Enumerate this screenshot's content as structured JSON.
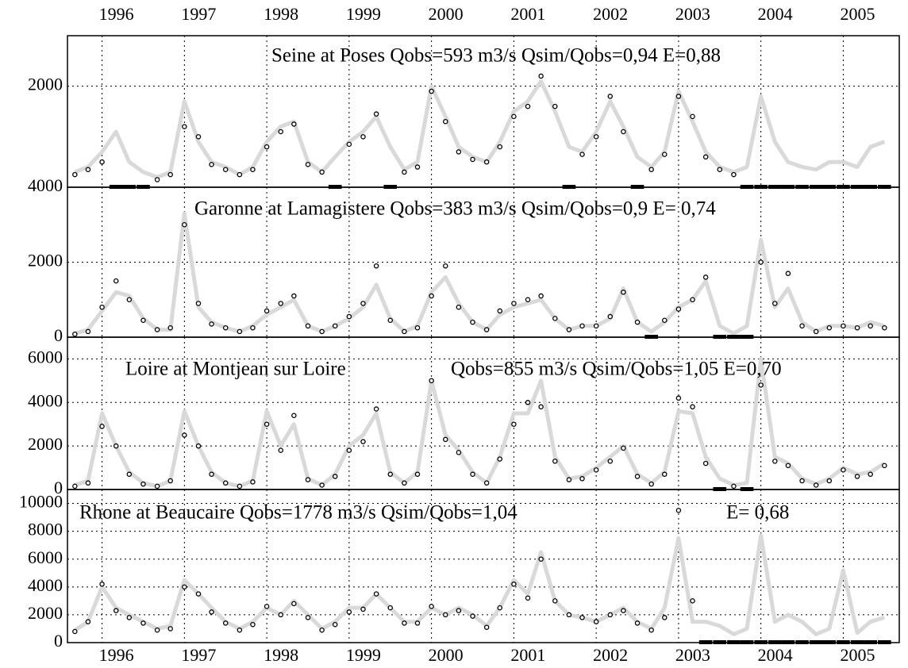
{
  "chart_data": [
    {
      "type": "line",
      "annotations": [
        "Seine at Poses Qobs=593 m3/s Qsim/Qobs=0,94 E=0,88"
      ],
      "x": [
        1995.67,
        1995.83,
        1996,
        1996.17,
        1996.33,
        1996.5,
        1996.67,
        1996.83,
        1997,
        1997.17,
        1997.33,
        1997.5,
        1997.67,
        1997.83,
        1998,
        1998.17,
        1998.33,
        1998.5,
        1998.67,
        1998.83,
        1999,
        1999.17,
        1999.33,
        1999.5,
        1999.67,
        1999.83,
        2000,
        2000.17,
        2000.33,
        2000.5,
        2000.67,
        2000.83,
        2001,
        2001.17,
        2001.33,
        2001.5,
        2001.67,
        2001.83,
        2002,
        2002.17,
        2002.33,
        2002.5,
        2002.67,
        2002.83,
        2003,
        2003.17,
        2003.33,
        2003.5,
        2003.67,
        2003.83,
        2004,
        2004.17,
        2004.33,
        2004.5,
        2004.67,
        2004.83,
        2005,
        2005.17,
        2005.33,
        2005.5
      ],
      "series": [
        {
          "color": "#d9d9d9",
          "values": [
            300,
            400,
            700,
            1100,
            500,
            300,
            200,
            300,
            1700,
            900,
            500,
            400,
            250,
            400,
            900,
            1200,
            1300,
            500,
            300,
            600,
            900,
            1100,
            1400,
            800,
            350,
            500,
            2000,
            1400,
            800,
            600,
            500,
            900,
            1500,
            1700,
            2100,
            1500,
            800,
            700,
            1100,
            1700,
            1200,
            600,
            400,
            700,
            1900,
            1300,
            700,
            400,
            300,
            400,
            1800,
            900,
            500,
            400,
            350,
            500,
            500,
            400,
            800,
            900
          ]
        },
        {
          "color": "#000000",
          "marker": "circle",
          "values": [
            250,
            350,
            500,
            null,
            null,
            null,
            150,
            250,
            1200,
            1000,
            450,
            350,
            250,
            350,
            800,
            1100,
            1250,
            450,
            300,
            null,
            850,
            1000,
            1450,
            null,
            300,
            400,
            1900,
            1300,
            700,
            550,
            500,
            800,
            1400,
            1600,
            2200,
            1600,
            null,
            650,
            1000,
            1800,
            1100,
            null,
            350,
            650,
            1800,
            1400,
            600,
            350,
            250,
            null,
            null,
            null,
            null,
            null,
            null,
            null,
            null,
            null,
            null,
            null
          ]
        }
      ],
      "xlim": [
        1995.58,
        2005.68
      ],
      "xticks": [
        1996,
        1997,
        1998,
        1999,
        2000,
        2001,
        2002,
        2003,
        2004,
        2005
      ],
      "ylim": [
        0,
        3000
      ],
      "yticks": [
        2000
      ],
      "grid": true
    },
    {
      "type": "line",
      "annotations": [
        "Garonne at Lamagistere Qobs=383 m3/s Qsim/Qobs=0,9 E= 0,74"
      ],
      "x": [
        1995.67,
        1995.83,
        1996,
        1996.17,
        1996.33,
        1996.5,
        1996.67,
        1996.83,
        1997,
        1997.17,
        1997.33,
        1997.5,
        1997.67,
        1997.83,
        1998,
        1998.17,
        1998.33,
        1998.5,
        1998.67,
        1998.83,
        1999,
        1999.17,
        1999.33,
        1999.5,
        1999.67,
        1999.83,
        2000,
        2000.17,
        2000.33,
        2000.5,
        2000.67,
        2000.83,
        2001,
        2001.17,
        2001.33,
        2001.5,
        2001.67,
        2001.83,
        2002,
        2002.17,
        2002.33,
        2002.5,
        2002.67,
        2002.83,
        2003,
        2003.17,
        2003.33,
        2003.5,
        2003.67,
        2003.83,
        2004,
        2004.17,
        2004.33,
        2004.5,
        2004.67,
        2004.83,
        2005,
        2005.17,
        2005.33,
        2005.5
      ],
      "series": [
        {
          "color": "#d9d9d9",
          "values": [
            100,
            200,
            700,
            1200,
            1100,
            500,
            200,
            200,
            3300,
            800,
            400,
            250,
            150,
            300,
            600,
            800,
            1000,
            300,
            150,
            300,
            500,
            800,
            1400,
            500,
            150,
            300,
            1200,
            1600,
            900,
            400,
            200,
            600,
            800,
            900,
            1000,
            500,
            200,
            300,
            300,
            500,
            1300,
            400,
            150,
            400,
            800,
            1000,
            1500,
            300,
            100,
            300,
            2600,
            800,
            1300,
            400,
            150,
            300,
            300,
            250,
            400,
            300
          ]
        },
        {
          "color": "#000000",
          "marker": "circle",
          "values": [
            80,
            150,
            800,
            1500,
            1000,
            450,
            200,
            250,
            3000,
            900,
            350,
            250,
            150,
            250,
            700,
            900,
            1100,
            300,
            150,
            300,
            550,
            900,
            1900,
            450,
            150,
            250,
            1100,
            1900,
            800,
            400,
            200,
            700,
            900,
            1000,
            1100,
            500,
            200,
            300,
            300,
            550,
            1200,
            400,
            null,
            450,
            750,
            1000,
            1600,
            null,
            null,
            null,
            2000,
            900,
            1700,
            300,
            150,
            250,
            300,
            250,
            300,
            250
          ]
        }
      ],
      "xlim": [
        1995.58,
        2005.68
      ],
      "xticks": [
        1996,
        1997,
        1998,
        1999,
        2000,
        2001,
        2002,
        2003,
        2004,
        2005
      ],
      "ylim": [
        0,
        4000
      ],
      "yticks": [
        0,
        2000,
        4000
      ],
      "grid": true
    },
    {
      "type": "line",
      "annotations": [
        "Loire at Montjean sur Loire",
        "Qobs=855 m3/s Qsim/Qobs=1,05  E=0,70"
      ],
      "x": [
        1995.67,
        1995.83,
        1996,
        1996.17,
        1996.33,
        1996.5,
        1996.67,
        1996.83,
        1997,
        1997.17,
        1997.33,
        1997.5,
        1997.67,
        1997.83,
        1998,
        1998.17,
        1998.33,
        1998.5,
        1998.67,
        1998.83,
        1999,
        1999.17,
        1999.33,
        1999.5,
        1999.67,
        1999.83,
        2000,
        2000.17,
        2000.33,
        2000.5,
        2000.67,
        2000.83,
        2001,
        2001.17,
        2001.33,
        2001.5,
        2001.67,
        2001.83,
        2002,
        2002.17,
        2002.33,
        2002.5,
        2002.67,
        2002.83,
        2003,
        2003.17,
        2003.33,
        2003.5,
        2003.67,
        2003.83,
        2004,
        2004.17,
        2004.33,
        2004.5,
        2004.67,
        2004.83,
        2005,
        2005.17,
        2005.33,
        2005.5
      ],
      "series": [
        {
          "color": "#d9d9d9",
          "values": [
            200,
            400,
            3500,
            2000,
            800,
            300,
            150,
            400,
            3600,
            2000,
            800,
            300,
            150,
            400,
            3600,
            2000,
            3000,
            500,
            200,
            700,
            2000,
            2500,
            3500,
            800,
            300,
            800,
            5000,
            2500,
            1800,
            800,
            300,
            1500,
            3500,
            3500,
            5000,
            1500,
            500,
            600,
            1000,
            1500,
            2000,
            700,
            300,
            800,
            3600,
            3500,
            1500,
            500,
            200,
            300,
            6000,
            1500,
            1200,
            500,
            250,
            500,
            1000,
            700,
            800,
            1200
          ]
        },
        {
          "color": "#000000",
          "marker": "circle",
          "values": [
            150,
            300,
            2900,
            2000,
            700,
            250,
            150,
            400,
            2500,
            2000,
            700,
            300,
            150,
            350,
            3000,
            1800,
            3400,
            450,
            200,
            600,
            1800,
            2200,
            3700,
            700,
            300,
            700,
            5000,
            2300,
            1700,
            700,
            300,
            1400,
            3000,
            4000,
            3800,
            1300,
            450,
            500,
            900,
            1300,
            1900,
            600,
            250,
            700,
            4200,
            3800,
            1200,
            null,
            150,
            null,
            4800,
            1300,
            1100,
            400,
            200,
            400,
            900,
            600,
            700,
            1100
          ]
        }
      ],
      "xlim": [
        1995.58,
        2005.68
      ],
      "xticks": [
        1996,
        1997,
        1998,
        1999,
        2000,
        2001,
        2002,
        2003,
        2004,
        2005
      ],
      "ylim": [
        0,
        7000
      ],
      "yticks": [
        0,
        2000,
        4000,
        6000
      ],
      "grid": true
    },
    {
      "type": "line",
      "annotations": [
        "Rhone at Beaucaire Qobs=1778 m3/s Qsim/Qobs=1,04",
        "E= 0,68"
      ],
      "x": [
        1995.67,
        1995.83,
        1996,
        1996.17,
        1996.33,
        1996.5,
        1996.67,
        1996.83,
        1997,
        1997.17,
        1997.33,
        1997.5,
        1997.67,
        1997.83,
        1998,
        1998.17,
        1998.33,
        1998.5,
        1998.67,
        1998.83,
        1999,
        1999.17,
        1999.33,
        1999.5,
        1999.67,
        1999.83,
        2000,
        2000.17,
        2000.33,
        2000.5,
        2000.67,
        2000.83,
        2001,
        2001.17,
        2001.33,
        2001.5,
        2001.67,
        2001.83,
        2002,
        2002.17,
        2002.33,
        2002.5,
        2002.67,
        2002.83,
        2003,
        2003.17,
        2003.33,
        2003.5,
        2003.67,
        2003.83,
        2004,
        2004.17,
        2004.33,
        2004.5,
        2004.67,
        2004.83,
        2005,
        2005.17,
        2005.33,
        2005.5
      ],
      "series": [
        {
          "color": "#d9d9d9",
          "values": [
            900,
            1500,
            4000,
            2500,
            2000,
            1500,
            1000,
            1200,
            4500,
            3500,
            2500,
            1500,
            1000,
            1500,
            2500,
            2000,
            3000,
            2000,
            1000,
            1500,
            2500,
            2500,
            3500,
            2500,
            1500,
            1500,
            2500,
            2000,
            2500,
            2000,
            1200,
            2500,
            4500,
            3500,
            6500,
            3000,
            2000,
            1800,
            1500,
            2000,
            2500,
            1500,
            1000,
            2500,
            7500,
            1500,
            1500,
            1200,
            600,
            1000,
            7700,
            1500,
            2000,
            1500,
            600,
            1000,
            5200,
            700,
            1500,
            1800
          ]
        },
        {
          "color": "#000000",
          "marker": "circle",
          "values": [
            800,
            1500,
            4200,
            2300,
            1800,
            1400,
            900,
            1000,
            4000,
            3500,
            2200,
            1400,
            900,
            1300,
            2600,
            2000,
            2800,
            1800,
            900,
            1300,
            2200,
            2400,
            3500,
            2500,
            1400,
            1400,
            2600,
            2000,
            2300,
            1900,
            1100,
            2500,
            4200,
            3200,
            6000,
            3000,
            2000,
            1800,
            1500,
            2000,
            2300,
            1400,
            900,
            1800,
            9500,
            3000,
            null,
            null,
            null,
            null,
            null,
            null,
            null,
            null,
            null,
            null,
            null,
            null,
            null,
            null
          ]
        }
      ],
      "xlim": [
        1995.58,
        2005.68
      ],
      "xticks": [
        1996,
        1997,
        1998,
        1999,
        2000,
        2001,
        2002,
        2003,
        2004,
        2005
      ],
      "ylim": [
        0,
        11000
      ],
      "yticks": [
        0,
        2000,
        4000,
        6000,
        8000,
        10000
      ],
      "grid": true
    }
  ]
}
